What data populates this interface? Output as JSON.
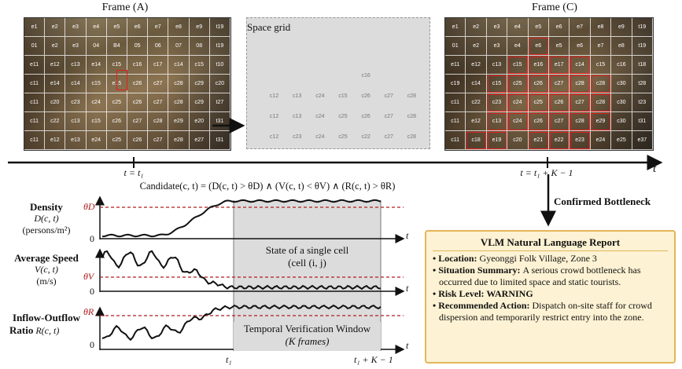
{
  "frame_a": {
    "title": "Frame (A)",
    "cells": [
      [
        "e1",
        "e2",
        "e3",
        "e4",
        "e5",
        "e6",
        "e7",
        "e8",
        "e9",
        "t19"
      ],
      [
        "01",
        "e2",
        "e3",
        "04",
        "B4",
        "05",
        "06",
        "07",
        "08",
        "t19"
      ],
      [
        "e11",
        "e12",
        "c13",
        "e14",
        "c15",
        "c16",
        "c17",
        "c14",
        "c15",
        "t10"
      ],
      [
        "c11",
        "e14",
        "c14",
        "c15",
        "e15",
        "c26",
        "c27",
        "c28",
        "c29",
        "c20"
      ],
      [
        "c11",
        "c20",
        "c23",
        "c24",
        "c25",
        "c26",
        "c27",
        "c28",
        "c29",
        "t27"
      ],
      [
        "c11",
        "c22",
        "c13",
        "c15",
        "c26",
        "c27",
        "c28",
        "e29",
        "e20",
        "t31"
      ],
      [
        "c11",
        "e12",
        "e13",
        "e24",
        "c25",
        "c26",
        "c27",
        "e28",
        "e27",
        "t31"
      ]
    ]
  },
  "space_grid": {
    "title": "Space grid",
    "cells": [
      [
        "",
        "",
        "",
        "",
        "c16",
        "",
        ""
      ],
      [
        "c12",
        "c13",
        "c24",
        "c15",
        "c26",
        "c27",
        "c28"
      ],
      [
        "c12",
        "c13",
        "c24",
        "c25",
        "c26",
        "c27",
        "c28"
      ],
      [
        "c12",
        "c23",
        "c24",
        "c25",
        "c22",
        "c27",
        "c28"
      ]
    ]
  },
  "frame_c": {
    "title": "Frame (C)",
    "cells": [
      [
        "e1",
        "e2",
        "e3",
        "e4",
        "e5",
        "e6",
        "e7",
        "e8",
        "e9",
        "t19"
      ],
      [
        "01",
        "e2",
        "e3",
        "e4",
        "e6",
        "e5",
        "e6",
        "e7",
        "e8",
        "t19"
      ],
      [
        "e11",
        "e12",
        "c13",
        "c15",
        "e16",
        "e17",
        "c14",
        "c15",
        "c16",
        "t18"
      ],
      [
        "c19",
        "c14",
        "c15",
        "c25",
        "c26",
        "c27",
        "c28",
        "c28",
        "c30",
        "t28"
      ],
      [
        "c11",
        "c22",
        "c23",
        "c24",
        "c25",
        "c26",
        "c27",
        "c28",
        "c30",
        "t23"
      ],
      [
        "c11",
        "e12",
        "c13",
        "c24",
        "c26",
        "c27",
        "c28",
        "e29",
        "c30",
        "t31"
      ],
      [
        "c11",
        "c18",
        "e19",
        "c20",
        "e21",
        "e22",
        "e23",
        "e24",
        "e25",
        "e37"
      ]
    ]
  },
  "timeline": {
    "t_axis": "t",
    "t1_label": "t = t₁",
    "tk_label": "t = t₁ + K − 1"
  },
  "candidate_formula": "Candidate(c, t) = (D(c, t) > θD) ∧ (V(c, t) < θV) ∧ (R(c, t) > θR)",
  "confirmed_label": "Confirmed Bottleneck",
  "plots": {
    "density": {
      "name": "Density",
      "var": "D(c, t)",
      "unit": "(persons/m²)",
      "theta": "θD",
      "zero": "0",
      "t": "t"
    },
    "speed": {
      "name": "Average Speed",
      "var": "V(c, t)",
      "unit": "(m/s)",
      "theta": "θV",
      "zero": "0",
      "t": "t"
    },
    "inflow": {
      "name": "Inflow-Outflow",
      "name2": "Ratio",
      "var": "R(c, t)",
      "theta": "θR",
      "zero": "0",
      "t": "t"
    }
  },
  "window": {
    "state_line1": "State of a single cell",
    "state_line2": "(cell (i, j)",
    "verification_line1": "Temporal Verification Window",
    "verification_line2": "(K frames)",
    "t1": "t₁",
    "tk": "t₁ + K − 1"
  },
  "report": {
    "title": "VLM Natural Language Report",
    "items": [
      {
        "key": "Location:",
        "value": "Gyeonggi Folk Village, Zone 3"
      },
      {
        "key": "Situation Summary:",
        "value": "A serious crowd bottleneck has occurred due to limited space and static tourists."
      },
      {
        "key": "Risk Level: WARNING",
        "value": ""
      },
      {
        "key": "Recommended Action:",
        "value": "Dispatch on-site staff for crowd dispersion and temporarily restrict entry into the zone."
      }
    ]
  },
  "colors": {
    "threshold": "#b01c1c",
    "highlight": "#e02020",
    "report_bg": "#fdf2d3",
    "report_border": "#e3b55a",
    "window_fill": "#dcdcdc"
  }
}
